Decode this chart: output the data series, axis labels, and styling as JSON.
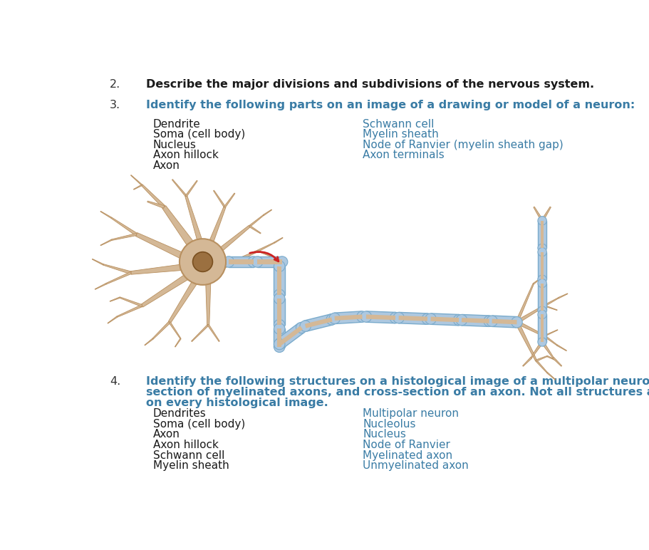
{
  "bg_color": "#ffffff",
  "teal_color": "#3a7ca5",
  "dark_color": "#1a1a1a",
  "number_color": "#333333",
  "item2_number": "2.",
  "item2_text": "Describe the major divisions and subdivisions of the nervous system.",
  "item3_number": "3.",
  "item3_text": "Identify the following parts on an image of a drawing or model of a neuron:",
  "item4_number": "4.",
  "item4_line1": "Identify the following structures on a histological image of a multipolar neuron, longitudinal",
  "item4_line2": "section of myelinated axons, and cross-section of an axon. Not all structures are present",
  "item4_line3": "on every histological image.",
  "item3_col1": [
    "Dendrite",
    "Soma (cell body)",
    "Nucleus",
    "Axon hillock",
    "Axon"
  ],
  "item3_col2": [
    "Schwann cell",
    "Myelin sheath",
    "Node of Ranvier (myelin sheath gap)",
    "Axon terminals"
  ],
  "item4_col1": [
    "Dendrites",
    "Soma (cell body)",
    "Axon",
    "Axon hillock",
    "Schwann cell",
    "Myelin sheath"
  ],
  "item4_col2": [
    "Multipolar neuron",
    "Nucleolus",
    "Nucleus",
    "Node of Ranvier",
    "Myelinated axon",
    "Unmyelinated axon"
  ],
  "soma_color": "#d4b896",
  "soma_edge_color": "#b89060",
  "nucleus_color": "#9b7040",
  "nucleus_edge_color": "#7a5020",
  "dendrite_color": "#d4b896",
  "dendrite_edge_color": "#b89060",
  "myelin_color": "#adc8e0",
  "myelin_edge_color": "#7aabcc",
  "axon_core_color": "#d4b896",
  "arrow_color": "#cc2222"
}
